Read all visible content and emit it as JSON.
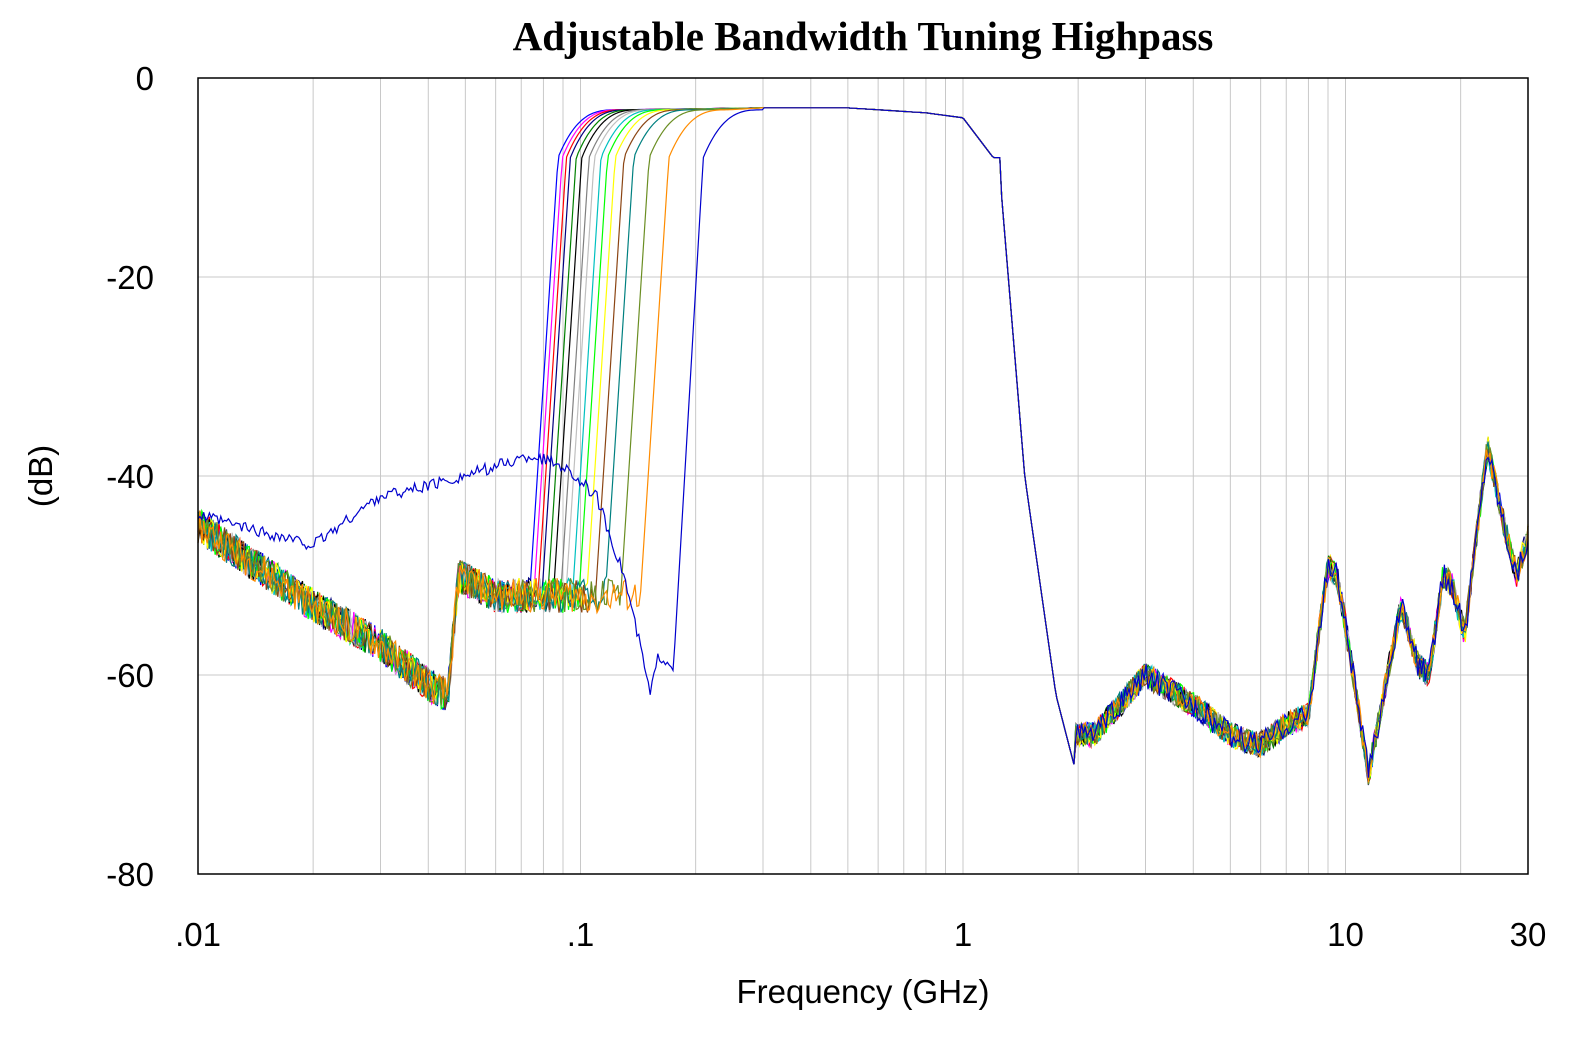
{
  "chart_data": {
    "type": "line",
    "title": "Adjustable Bandwidth Tuning Highpass",
    "xlabel": "Frequency (GHz)",
    "ylabel": "(dB)",
    "x_scale": "log",
    "xlim": [
      0.01,
      30
    ],
    "ylim": [
      -80,
      0
    ],
    "x_ticks": [
      0.01,
      0.1,
      1,
      10,
      30
    ],
    "x_tick_labels": [
      ".01",
      ".1",
      "1",
      "10",
      "30"
    ],
    "y_ticks": [
      0,
      -20,
      -40,
      -60,
      -80
    ],
    "y_tick_labels": [
      "0",
      "-20",
      "-40",
      "-60",
      "-80"
    ],
    "grid": true,
    "legend": "none",
    "common_response": {
      "low_freq_start_db": -45,
      "stopband_low": [
        [
          0.01,
          -45
        ],
        [
          0.02,
          -53
        ],
        [
          0.03,
          -57
        ],
        [
          0.04,
          -61
        ],
        [
          0.045,
          -62
        ],
        [
          0.048,
          -50
        ],
        [
          0.06,
          -52
        ]
      ],
      "passband_level_db": -3.2,
      "passband_droop": [
        [
          0.3,
          -3.0
        ],
        [
          0.5,
          -3.0
        ],
        [
          0.8,
          -3.5
        ],
        [
          1.0,
          -4.0
        ],
        [
          1.2,
          -8.0
        ]
      ],
      "upper_rolloff": [
        [
          1.25,
          -10
        ],
        [
          1.45,
          -40
        ],
        [
          1.75,
          -62
        ],
        [
          1.95,
          -69
        ]
      ],
      "upper_stopband": [
        [
          2.2,
          -66
        ],
        [
          3.0,
          -60
        ],
        [
          4.0,
          -63
        ],
        [
          5.0,
          -66
        ],
        [
          6.0,
          -67
        ],
        [
          7.0,
          -65
        ],
        [
          8.0,
          -64
        ],
        [
          8.5,
          -56
        ],
        [
          9.0,
          -49
        ],
        [
          9.5,
          -50
        ],
        [
          10.0,
          -55
        ],
        [
          11.5,
          -70
        ],
        [
          13.0,
          -59
        ],
        [
          14.0,
          -53
        ],
        [
          15.5,
          -59
        ],
        [
          16.5,
          -60
        ],
        [
          18.0,
          -50
        ],
        [
          19.0,
          -51
        ],
        [
          20.5,
          -56
        ],
        [
          22.0,
          -46
        ],
        [
          23.5,
          -37
        ],
        [
          26.0,
          -45
        ],
        [
          28.0,
          -50
        ],
        [
          30.0,
          -46
        ]
      ]
    },
    "series": [
      {
        "color": "#0000ff",
        "cutoff_ghz": 0.078
      },
      {
        "color": "#ff00ff",
        "cutoff_ghz": 0.08
      },
      {
        "color": "#ff0000",
        "cutoff_ghz": 0.082
      },
      {
        "color": "#000080",
        "cutoff_ghz": 0.084
      },
      {
        "color": "#008000",
        "cutoff_ghz": 0.087
      },
      {
        "color": "#000000",
        "cutoff_ghz": 0.09
      },
      {
        "color": "#808080",
        "cutoff_ghz": 0.094
      },
      {
        "color": "#c0c0c0",
        "cutoff_ghz": 0.097
      },
      {
        "color": "#00c0c0",
        "cutoff_ghz": 0.101
      },
      {
        "color": "#00ff00",
        "cutoff_ghz": 0.105
      },
      {
        "color": "#ffff00",
        "cutoff_ghz": 0.11
      },
      {
        "color": "#8b4513",
        "cutoff_ghz": 0.116
      },
      {
        "color": "#008080",
        "cutoff_ghz": 0.123
      },
      {
        "color": "#6b8e23",
        "cutoff_ghz": 0.135
      },
      {
        "color": "#ff8c00",
        "cutoff_ghz": 0.152
      },
      {
        "color": "#0000cd",
        "cutoff_ghz": 0.187,
        "low_hump": [
          [
            0.01,
            -44
          ],
          [
            0.02,
            -47
          ],
          [
            0.03,
            -42
          ],
          [
            0.04,
            -41
          ],
          [
            0.05,
            -40
          ],
          [
            0.06,
            -39
          ],
          [
            0.075,
            -38
          ],
          [
            0.09,
            -39
          ],
          [
            0.11,
            -42
          ],
          [
            0.13,
            -50
          ],
          [
            0.145,
            -58
          ],
          [
            0.152,
            -62
          ],
          [
            0.16,
            -58
          ],
          [
            0.175,
            -59
          ],
          [
            0.18,
            -56
          ]
        ]
      }
    ]
  }
}
